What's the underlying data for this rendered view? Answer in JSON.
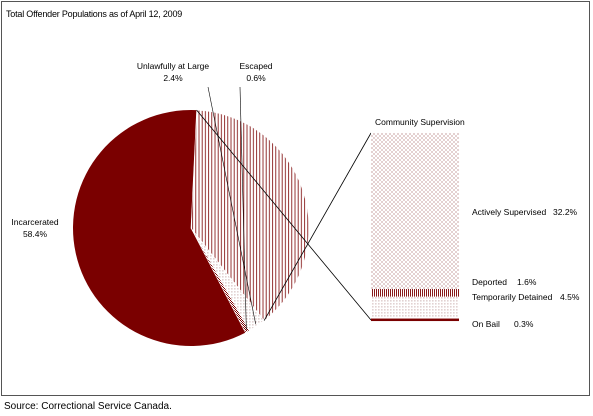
{
  "chart_data": {
    "type": "pie",
    "title": "Total Offender Populations as of April 12, 2009",
    "source": "Source: Correctional Service Canada.",
    "colors": {
      "dark": "#7a0000",
      "border": "#555555"
    },
    "pie": {
      "slices": [
        {
          "label": "Incarcerated",
          "value_text": "58.4%",
          "value": 58.4
        },
        {
          "label": "Community Supervision",
          "value": 38.6
        },
        {
          "label": "Unlawfully at Large",
          "value_text": "2.4%",
          "value": 2.4
        },
        {
          "label": "Escaped",
          "value_text": "0.6%",
          "value": 0.6
        }
      ]
    },
    "breakdown": {
      "title": "Community Supervision",
      "segments": [
        {
          "label": "Actively Supervised",
          "value_text": "32.2%",
          "value": 32.2
        },
        {
          "label": "Deported",
          "value_text": "1.6%",
          "value": 1.6
        },
        {
          "label": "Temporarily Detained",
          "value_text": "4.5%",
          "value": 4.5
        },
        {
          "label": "On Bail",
          "value_text": "0.3%",
          "value": 0.3
        }
      ]
    }
  }
}
